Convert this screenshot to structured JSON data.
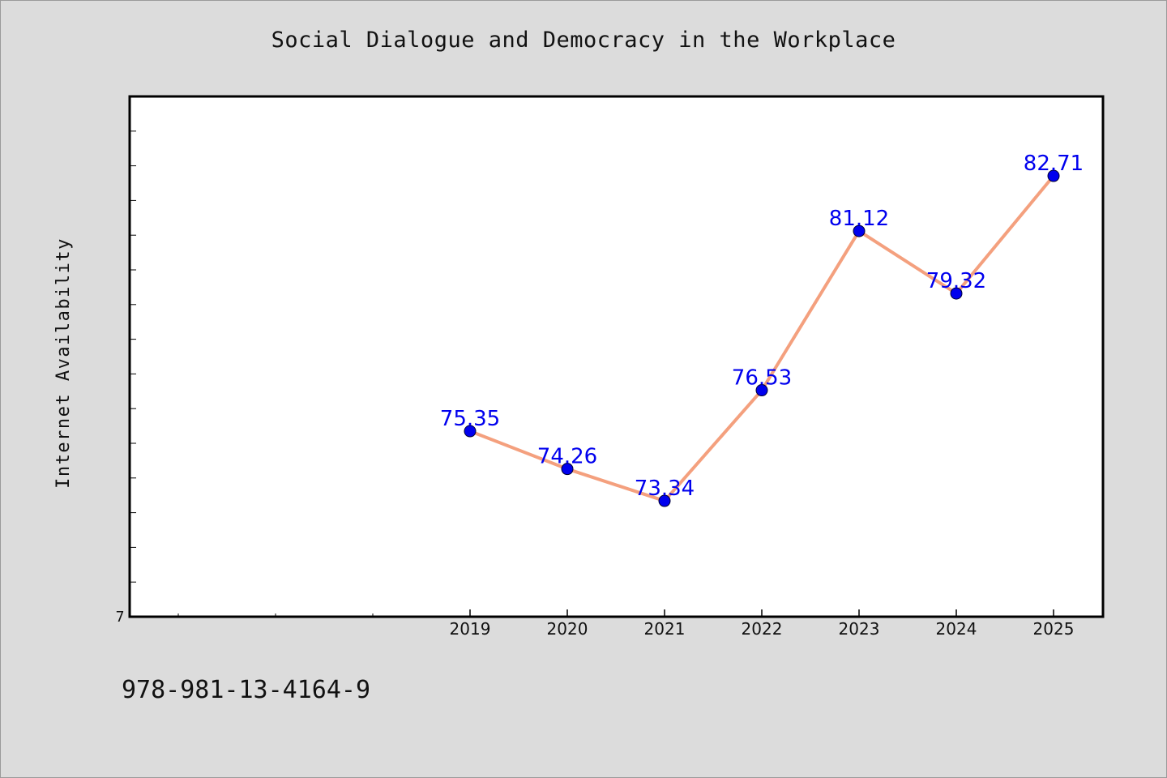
{
  "title": "Social Dialogue and Democracy in the Workplace",
  "footer_code": "978-981-13-4164-9",
  "colors": {
    "background": "#dcdcdc",
    "plot_background": "#ffffff",
    "line": "#f4a07e",
    "marker": "#0000ee",
    "data_label": "#0000ee"
  },
  "chart_data": {
    "type": "line",
    "title": "Social Dialogue and Democracy in the Workplace",
    "xlabel": "",
    "ylabel": "Internet Availability",
    "x": [
      "2019",
      "2020",
      "2021",
      "2022",
      "2023",
      "2024",
      "2025"
    ],
    "values": [
      75.35,
      74.26,
      73.34,
      76.53,
      81.12,
      79.32,
      82.71
    ],
    "data_labels": [
      "75.35",
      "74.26",
      "73.34",
      "76.53",
      "81.12",
      "79.32",
      "82.71"
    ],
    "y_tick_labels": [
      "7"
    ],
    "grid": false,
    "legend": "none"
  }
}
